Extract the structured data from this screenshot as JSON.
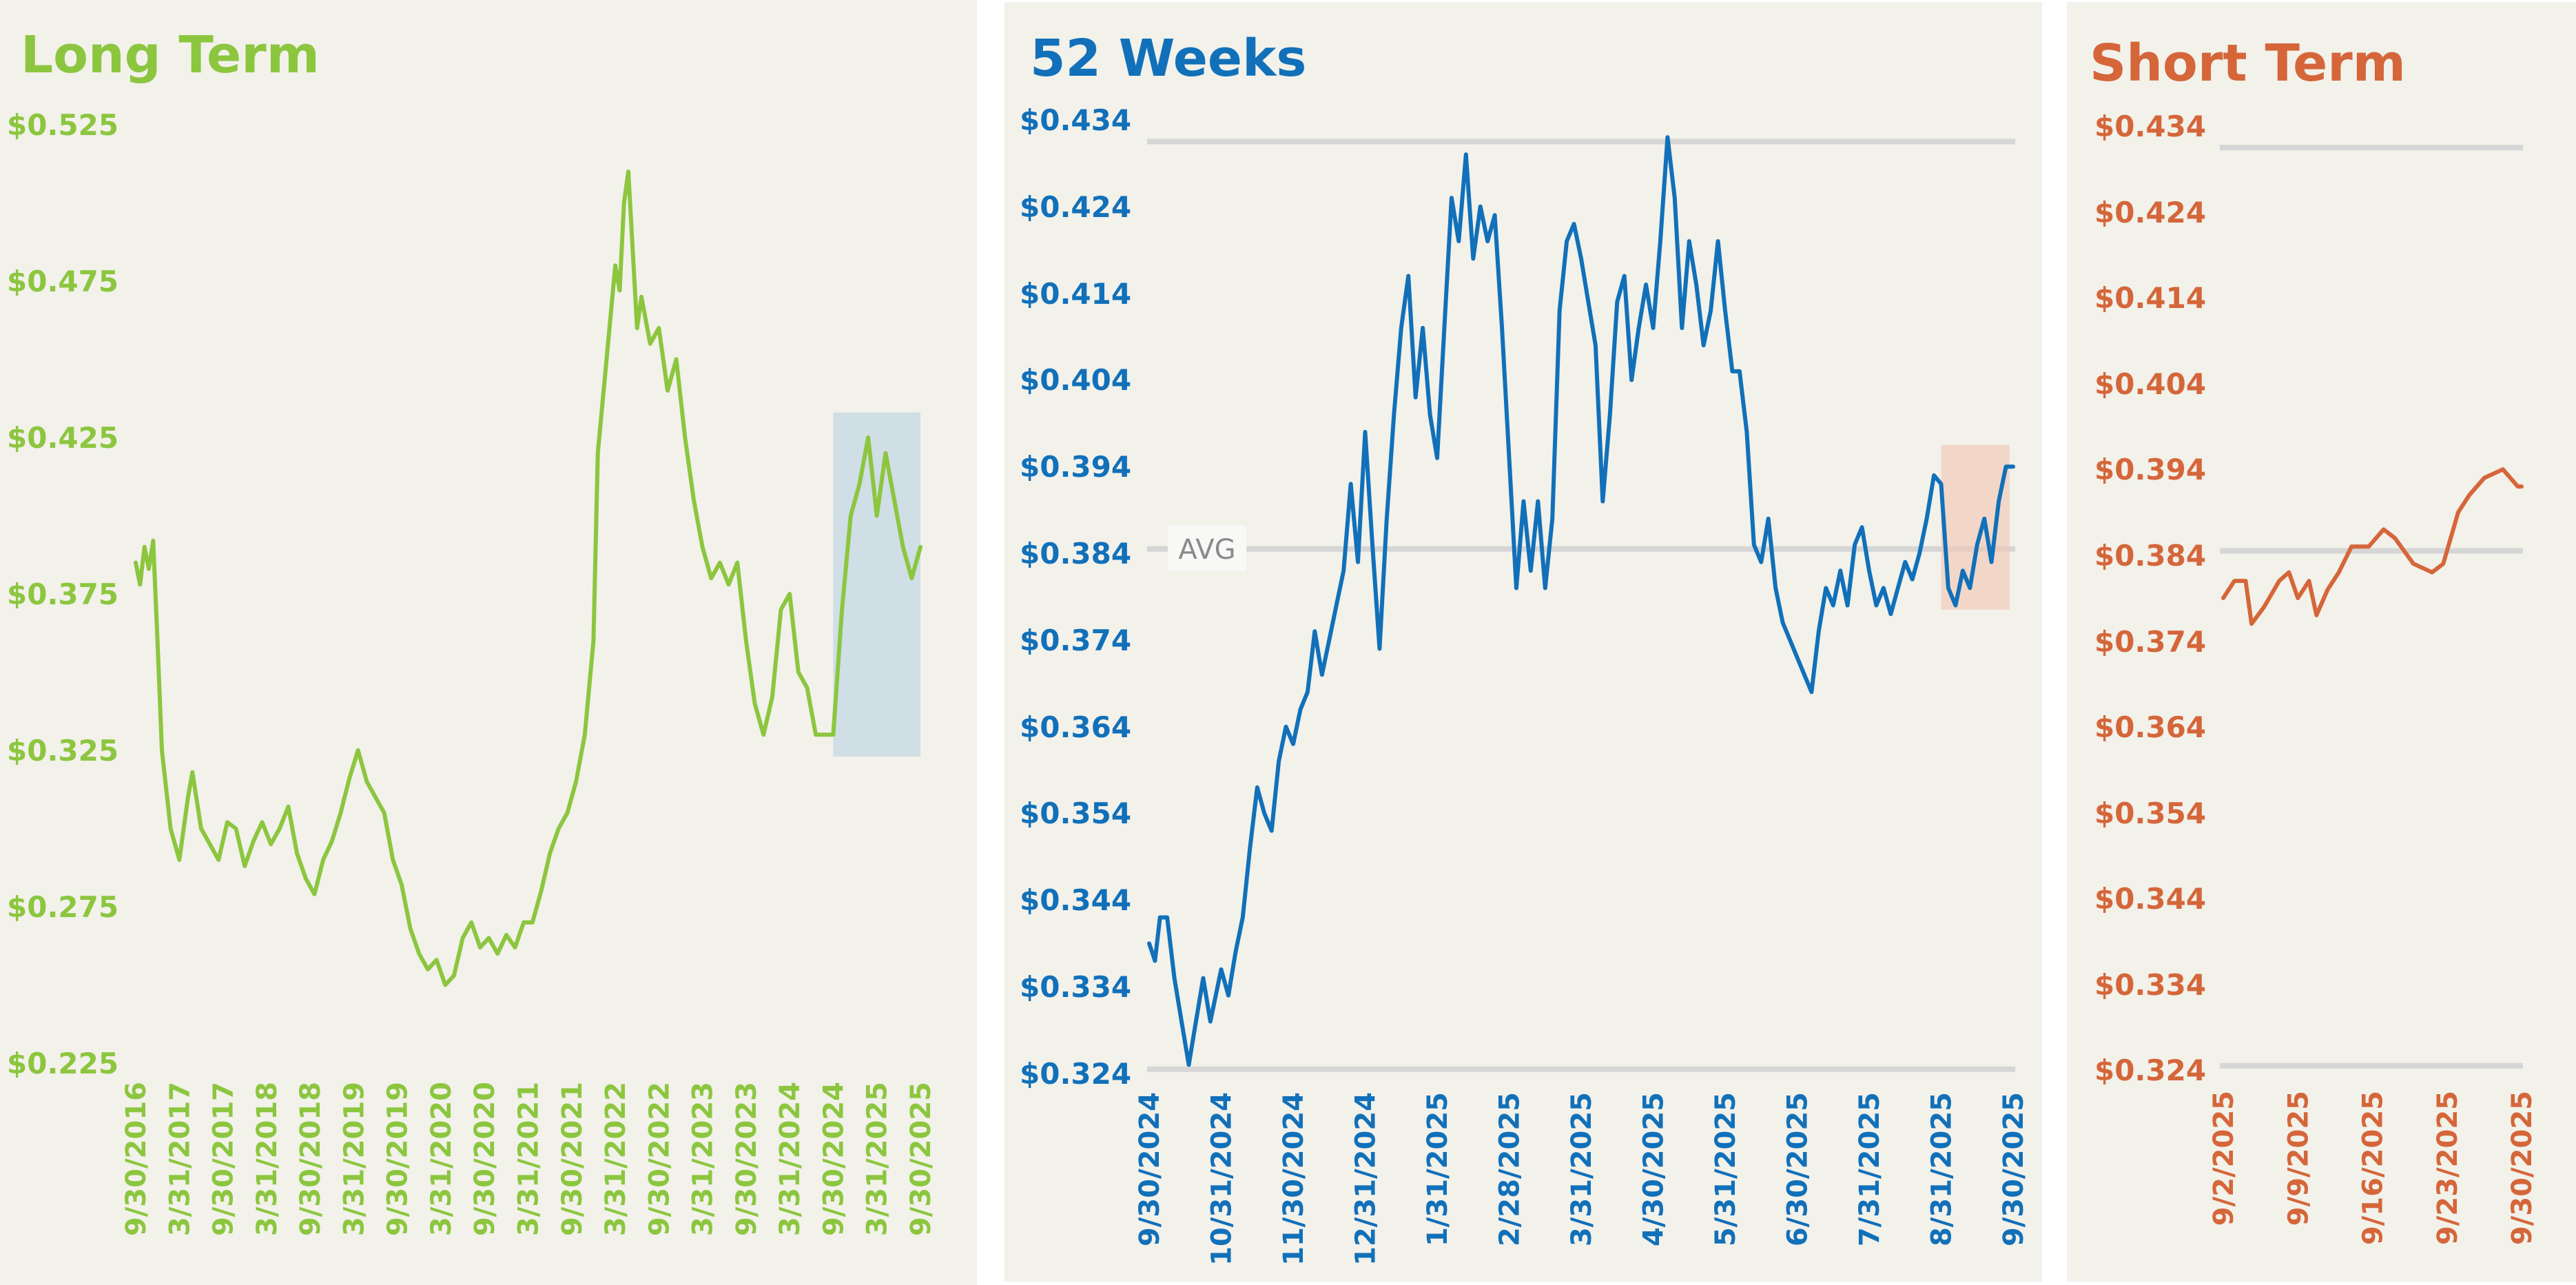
{
  "colors": {
    "long_term": "#8cc63f",
    "weeks_52": "#1170b9",
    "short_term": "#d5663a",
    "long_term_highlight": "#a6c8e0",
    "weeks_52_highlight": "#f1c7b0"
  },
  "chart_data": [
    {
      "id": "long",
      "type": "line",
      "title": "Long Term",
      "y_tick_labels": [
        "$0.525",
        "$0.475",
        "$0.425",
        "$0.375",
        "$0.325",
        "$0.275",
        "$0.225"
      ],
      "ylim": [
        0.225,
        0.525
      ],
      "x_tick_labels": [
        "9/30/2016",
        "3/31/2017",
        "9/30/2017",
        "3/31/2018",
        "9/30/2018",
        "3/31/2019",
        "9/30/2019",
        "3/31/2020",
        "9/30/2020",
        "3/31/2021",
        "9/30/2021",
        "3/31/2022",
        "9/30/2022",
        "3/31/2023",
        "9/30/2023",
        "3/31/2024",
        "9/30/2024",
        "3/31/2025",
        "9/30/2025"
      ],
      "xlim": [
        0,
        18
      ],
      "highlight": {
        "x_range": [
          16.0,
          18.0
        ],
        "y_range": [
          0.323,
          0.433
        ]
      },
      "series": [
        {
          "name": "Long Term",
          "x": [
            0,
            0.1,
            0.2,
            0.3,
            0.4,
            0.5,
            0.6,
            0.8,
            1.0,
            1.2,
            1.3,
            1.5,
            1.7,
            1.9,
            2.1,
            2.3,
            2.5,
            2.7,
            2.9,
            3.1,
            3.3,
            3.5,
            3.7,
            3.9,
            4.1,
            4.3,
            4.5,
            4.7,
            4.9,
            5.1,
            5.3,
            5.5,
            5.7,
            5.9,
            6.1,
            6.3,
            6.5,
            6.7,
            6.9,
            7.1,
            7.3,
            7.5,
            7.7,
            7.9,
            8.1,
            8.3,
            8.5,
            8.7,
            8.9,
            9.1,
            9.3,
            9.5,
            9.7,
            9.9,
            10.1,
            10.3,
            10.5,
            10.6,
            10.8,
            11.0,
            11.1,
            11.2,
            11.3,
            11.5,
            11.6,
            11.8,
            12.0,
            12.2,
            12.4,
            12.6,
            12.8,
            13.0,
            13.2,
            13.4,
            13.6,
            13.8,
            14.0,
            14.2,
            14.4,
            14.6,
            14.8,
            15.0,
            15.2,
            15.4,
            15.6,
            15.8,
            16.0,
            16.2,
            16.4,
            16.6,
            16.8,
            17.0,
            17.2,
            17.4,
            17.6,
            17.8,
            18.0
          ],
          "values": [
            0.385,
            0.378,
            0.39,
            0.383,
            0.392,
            0.36,
            0.325,
            0.3,
            0.29,
            0.31,
            0.318,
            0.3,
            0.295,
            0.29,
            0.302,
            0.3,
            0.288,
            0.296,
            0.302,
            0.295,
            0.3,
            0.307,
            0.292,
            0.284,
            0.279,
            0.29,
            0.296,
            0.305,
            0.316,
            0.325,
            0.315,
            0.31,
            0.305,
            0.29,
            0.282,
            0.268,
            0.26,
            0.255,
            0.258,
            0.25,
            0.253,
            0.265,
            0.27,
            0.262,
            0.265,
            0.26,
            0.266,
            0.262,
            0.27,
            0.27,
            0.28,
            0.292,
            0.3,
            0.305,
            0.315,
            0.33,
            0.36,
            0.42,
            0.45,
            0.48,
            0.472,
            0.5,
            0.51,
            0.46,
            0.47,
            0.455,
            0.46,
            0.44,
            0.45,
            0.425,
            0.405,
            0.39,
            0.38,
            0.385,
            0.378,
            0.385,
            0.36,
            0.34,
            0.33,
            0.342,
            0.37,
            0.375,
            0.35,
            0.345,
            0.33,
            0.33,
            0.33,
            0.37,
            0.4,
            0.41,
            0.425,
            0.4,
            0.42,
            0.405,
            0.39,
            0.38,
            0.39
          ]
        }
      ]
    },
    {
      "id": "weeks52",
      "type": "line",
      "title": "52 Weeks",
      "y_tick_labels": [
        "$0.434",
        "$0.424",
        "$0.414",
        "$0.404",
        "$0.394",
        "$0.384",
        "$0.374",
        "$0.364",
        "$0.354",
        "$0.344",
        "$0.334",
        "$0.324"
      ],
      "ylim": [
        0.324,
        0.434
      ],
      "x_tick_labels": [
        "9/30/2024",
        "10/31/2024",
        "11/30/2024",
        "12/31/2024",
        "1/31/2025",
        "2/28/2025",
        "3/31/2025",
        "4/30/2025",
        "5/31/2025",
        "6/30/2025",
        "7/31/2025",
        "8/31/2025",
        "9/30/2025"
      ],
      "xlim": [
        0,
        12
      ],
      "grid_lines": [
        0.4315,
        0.3845,
        0.3245
      ],
      "avg_value": 0.3845,
      "avg_label": "AVG",
      "highlight": {
        "x_range": [
          11.0,
          11.95
        ],
        "y_range": [
          0.3775,
          0.3965
        ]
      },
      "series": [
        {
          "name": "52 Weeks",
          "x": [
            0,
            0.08,
            0.15,
            0.25,
            0.35,
            0.45,
            0.55,
            0.65,
            0.75,
            0.85,
            1.0,
            1.1,
            1.2,
            1.3,
            1.4,
            1.5,
            1.6,
            1.7,
            1.8,
            1.9,
            2.0,
            2.1,
            2.2,
            2.3,
            2.4,
            2.5,
            2.6,
            2.7,
            2.8,
            2.9,
            3.0,
            3.1,
            3.2,
            3.3,
            3.4,
            3.5,
            3.6,
            3.7,
            3.8,
            3.9,
            4.0,
            4.1,
            4.2,
            4.3,
            4.4,
            4.5,
            4.6,
            4.7,
            4.8,
            4.9,
            5.0,
            5.1,
            5.2,
            5.3,
            5.4,
            5.5,
            5.6,
            5.7,
            5.8,
            5.9,
            6.0,
            6.1,
            6.2,
            6.3,
            6.4,
            6.5,
            6.6,
            6.7,
            6.8,
            6.9,
            7.0,
            7.1,
            7.2,
            7.3,
            7.4,
            7.5,
            7.6,
            7.7,
            7.8,
            7.9,
            8.0,
            8.1,
            8.2,
            8.3,
            8.4,
            8.5,
            8.6,
            8.7,
            8.8,
            8.9,
            9.0,
            9.1,
            9.2,
            9.3,
            9.4,
            9.5,
            9.6,
            9.7,
            9.8,
            9.9,
            10.0,
            10.1,
            10.2,
            10.3,
            10.4,
            10.5,
            10.6,
            10.7,
            10.8,
            10.9,
            11.0,
            11.1,
            11.2,
            11.3,
            11.4,
            11.5,
            11.6,
            11.7,
            11.8,
            11.9,
            12.0
          ],
          "values": [
            0.339,
            0.337,
            0.342,
            0.342,
            0.335,
            0.33,
            0.325,
            0.33,
            0.335,
            0.33,
            0.336,
            0.333,
            0.338,
            0.342,
            0.35,
            0.357,
            0.354,
            0.352,
            0.36,
            0.364,
            0.362,
            0.366,
            0.368,
            0.375,
            0.37,
            0.374,
            0.378,
            0.382,
            0.392,
            0.383,
            0.398,
            0.385,
            0.373,
            0.388,
            0.4,
            0.41,
            0.416,
            0.402,
            0.41,
            0.4,
            0.395,
            0.41,
            0.425,
            0.42,
            0.43,
            0.418,
            0.424,
            0.42,
            0.423,
            0.41,
            0.395,
            0.38,
            0.39,
            0.382,
            0.39,
            0.38,
            0.388,
            0.412,
            0.42,
            0.422,
            0.418,
            0.413,
            0.408,
            0.39,
            0.4,
            0.413,
            0.416,
            0.404,
            0.41,
            0.415,
            0.41,
            0.42,
            0.432,
            0.425,
            0.41,
            0.42,
            0.415,
            0.408,
            0.412,
            0.42,
            0.412,
            0.405,
            0.405,
            0.398,
            0.385,
            0.383,
            0.388,
            0.38,
            0.376,
            0.374,
            0.372,
            0.37,
            0.368,
            0.375,
            0.38,
            0.378,
            0.382,
            0.378,
            0.385,
            0.387,
            0.382,
            0.378,
            0.38,
            0.377,
            0.38,
            0.383,
            0.381,
            0.384,
            0.388,
            0.393,
            0.392,
            0.38,
            0.378,
            0.382,
            0.38,
            0.385,
            0.388,
            0.383,
            0.39,
            0.394,
            0.394
          ]
        }
      ]
    },
    {
      "id": "short",
      "type": "line",
      "title": "Short Term",
      "y_tick_labels": [
        "$0.434",
        "$0.424",
        "$0.414",
        "$0.404",
        "$0.394",
        "$0.384",
        "$0.374",
        "$0.364",
        "$0.354",
        "$0.344",
        "$0.334",
        "$0.324"
      ],
      "ylim": [
        0.324,
        0.434
      ],
      "x_tick_labels": [
        "9/2/2025",
        "9/9/2025",
        "9/16/2025",
        "9/23/2025",
        "9/30/2025"
      ],
      "xlim": [
        0,
        4
      ],
      "grid_lines": [
        0.4315,
        0.3845,
        0.3245
      ],
      "series": [
        {
          "name": "Short Term",
          "x": [
            0,
            0.15,
            0.3,
            0.38,
            0.55,
            0.75,
            0.88,
            1.0,
            1.15,
            1.25,
            1.4,
            1.55,
            1.72,
            1.95,
            2.15,
            2.3,
            2.55,
            2.8,
            2.95,
            3.15,
            3.3,
            3.5,
            3.75,
            3.95,
            4.0
          ],
          "values": [
            0.379,
            0.381,
            0.381,
            0.376,
            0.378,
            0.381,
            0.382,
            0.379,
            0.381,
            0.377,
            0.38,
            0.382,
            0.385,
            0.385,
            0.387,
            0.386,
            0.383,
            0.382,
            0.383,
            0.389,
            0.391,
            0.393,
            0.394,
            0.392,
            0.392
          ]
        }
      ]
    }
  ]
}
